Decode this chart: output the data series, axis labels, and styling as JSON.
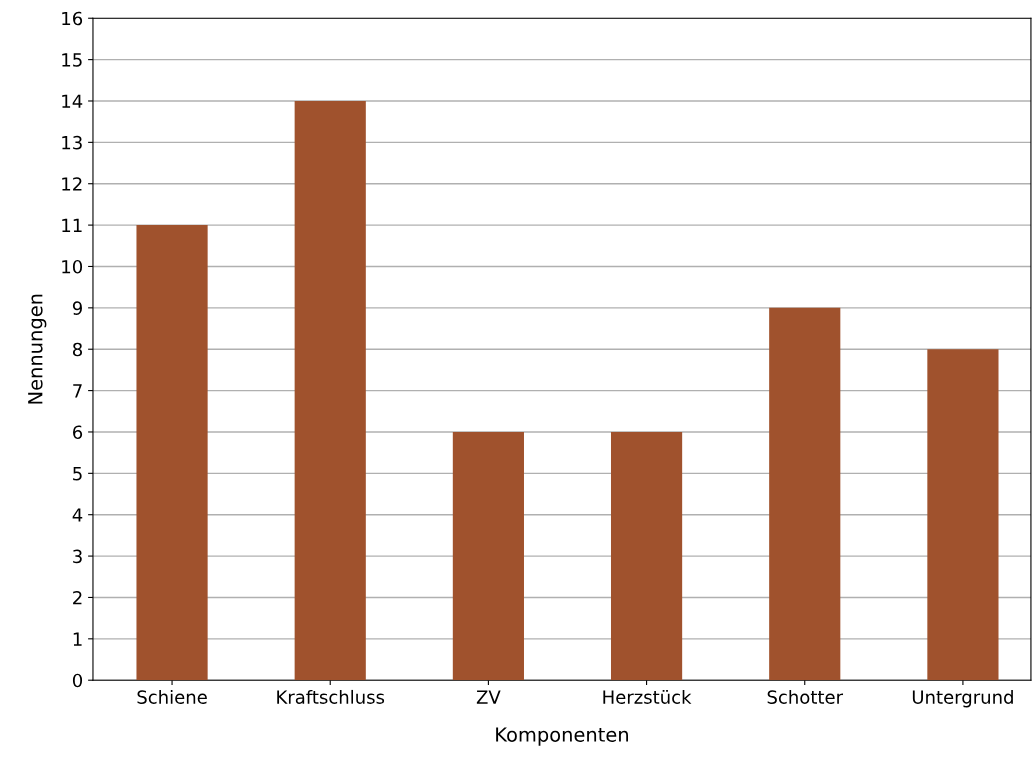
{
  "chart_data": {
    "type": "bar",
    "xlabel": "Komponenten",
    "ylabel": "Nennungen",
    "categories": [
      "Schiene",
      "Kraftschluss",
      "ZV",
      "Herzstück",
      "Schotter",
      "Untergrund"
    ],
    "values": [
      11,
      14,
      6,
      6,
      9,
      8
    ],
    "color": "#a0522d",
    "ylim": [
      0,
      16
    ],
    "yticks": [
      0,
      1,
      2,
      3,
      4,
      5,
      6,
      7,
      8,
      9,
      10,
      11,
      12,
      13,
      14,
      15,
      16
    ],
    "grid": "y"
  }
}
